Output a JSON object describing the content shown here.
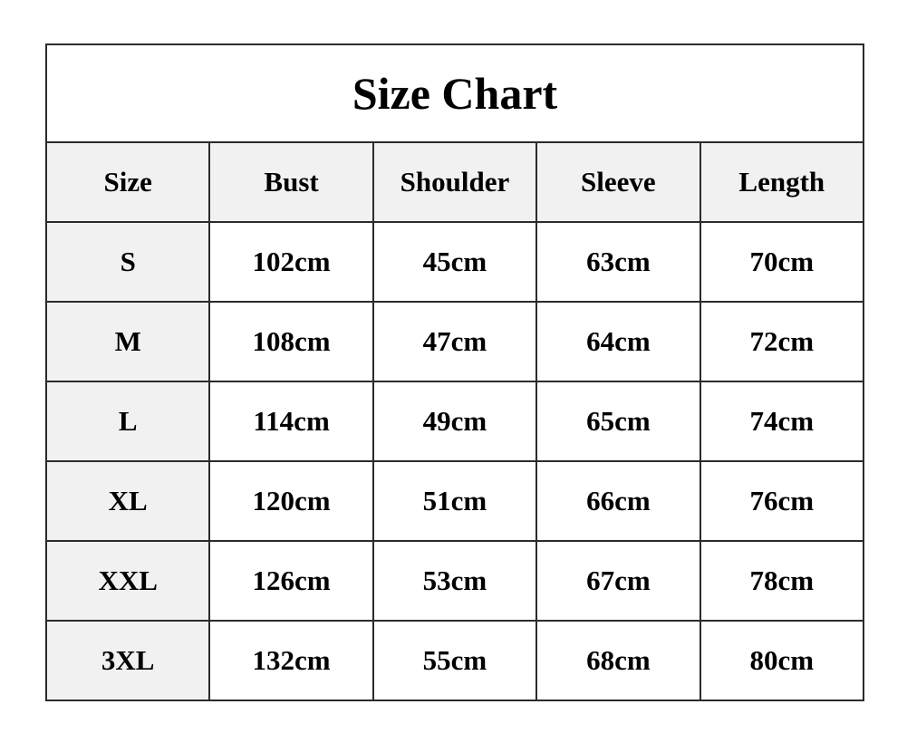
{
  "title": "Size Chart",
  "headers": [
    "Size",
    "Bust",
    "Shoulder",
    "Sleeve",
    "Length"
  ],
  "rows": [
    [
      "S",
      "102cm",
      "45cm",
      "63cm",
      "70cm"
    ],
    [
      "M",
      "108cm",
      "47cm",
      "64cm",
      "72cm"
    ],
    [
      "L",
      "114cm",
      "49cm",
      "65cm",
      "74cm"
    ],
    [
      "XL",
      "120cm",
      "51cm",
      "66cm",
      "76cm"
    ],
    [
      "XXL",
      "126cm",
      "53cm",
      "67cm",
      "78cm"
    ],
    [
      "3XL",
      "132cm",
      "55cm",
      "68cm",
      "80cm"
    ]
  ],
  "colors": {
    "header_bg": "#f1f1f1",
    "border": "#2b2b2b"
  }
}
